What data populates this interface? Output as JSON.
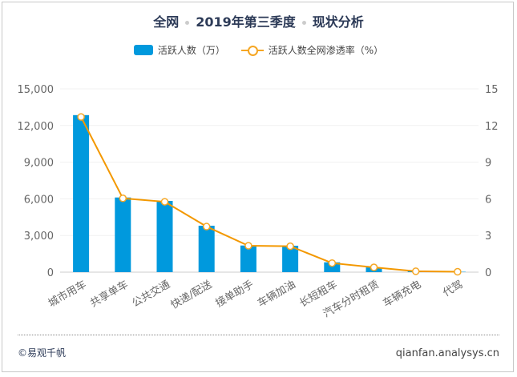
{
  "title_parts": [
    "全网",
    "2019年第三季度",
    "现状分析"
  ],
  "footer": {
    "copyright": "©易观千帆",
    "site": "qianfan.analysys.cn"
  },
  "chart_data": {
    "type": "bar+line",
    "categories": [
      "城市用车",
      "共享单车",
      "公共交通",
      "快递/配送",
      "接单助手",
      "车辆加油",
      "长短租车",
      "汽车分时租赁",
      "车辆充电",
      "代驾"
    ],
    "series": [
      {
        "name": "活跃人数（万）",
        "type": "bar",
        "axis": "left",
        "color": "#0099dd",
        "values": [
          12850,
          6110,
          5830,
          3800,
          2180,
          2160,
          805,
          390,
          100,
          30
        ]
      },
      {
        "name": "活跃人数全网渗透率（%）",
        "type": "line",
        "axis": "right",
        "color": "#f5a623",
        "values": [
          12.7,
          6.04,
          5.76,
          3.73,
          2.16,
          2.12,
          0.74,
          0.39,
          0.07,
          0.03
        ]
      }
    ],
    "yleft": {
      "ticks": [
        "0",
        "3,000",
        "6,000",
        "9,000",
        "12,000",
        "15,000"
      ],
      "range": [
        0,
        15000
      ]
    },
    "yright": {
      "ticks": [
        "0",
        "3",
        "6",
        "9",
        "12",
        "15"
      ],
      "range": [
        0,
        15
      ]
    },
    "legend": "top-center",
    "grid": true
  }
}
